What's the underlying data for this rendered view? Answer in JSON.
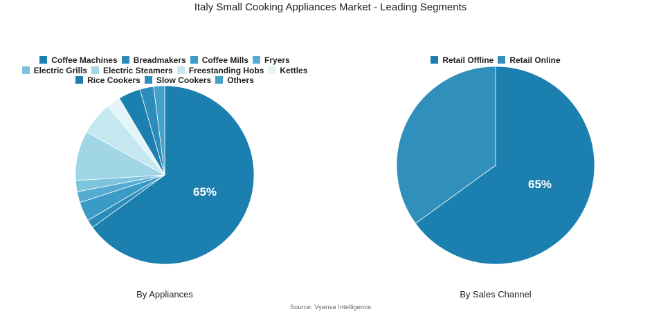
{
  "title": "Italy Small Cooking Appliances Market - Leading Segments",
  "source": "Source: Vyansa Intelligence",
  "chart_data": [
    {
      "type": "pie",
      "caption": "By Appliances",
      "categories": [
        "Coffee Machines",
        "Breadmakers",
        "Coffee Mills",
        "Fryers",
        "Electric Grills",
        "Electric Steamers",
        "Freestanding Hobs",
        "Kettles",
        "Rice Cookers",
        "Slow Cookers",
        "Others"
      ],
      "values": [
        65,
        1.5,
        3.5,
        2,
        2,
        9,
        6,
        2.5,
        4,
        2.5,
        2
      ],
      "colors": [
        "#1b7fb0",
        "#2a8bb8",
        "#3a9cc6",
        "#55abd0",
        "#7cc3dc",
        "#a0d6e6",
        "#c5e8f0",
        "#e3f5f9",
        "#1b7fb0",
        "#2d8dba",
        "#44a2c9"
      ],
      "data_labels": [
        "65%"
      ],
      "legend": "top"
    },
    {
      "type": "pie",
      "caption": "By Sales Channel",
      "categories": [
        "Retail Offline",
        "Retail Online"
      ],
      "values": [
        65,
        35
      ],
      "colors": [
        "#1b7fb0",
        "#3190bb"
      ],
      "data_labels": [
        "65%"
      ],
      "legend": "top"
    }
  ]
}
